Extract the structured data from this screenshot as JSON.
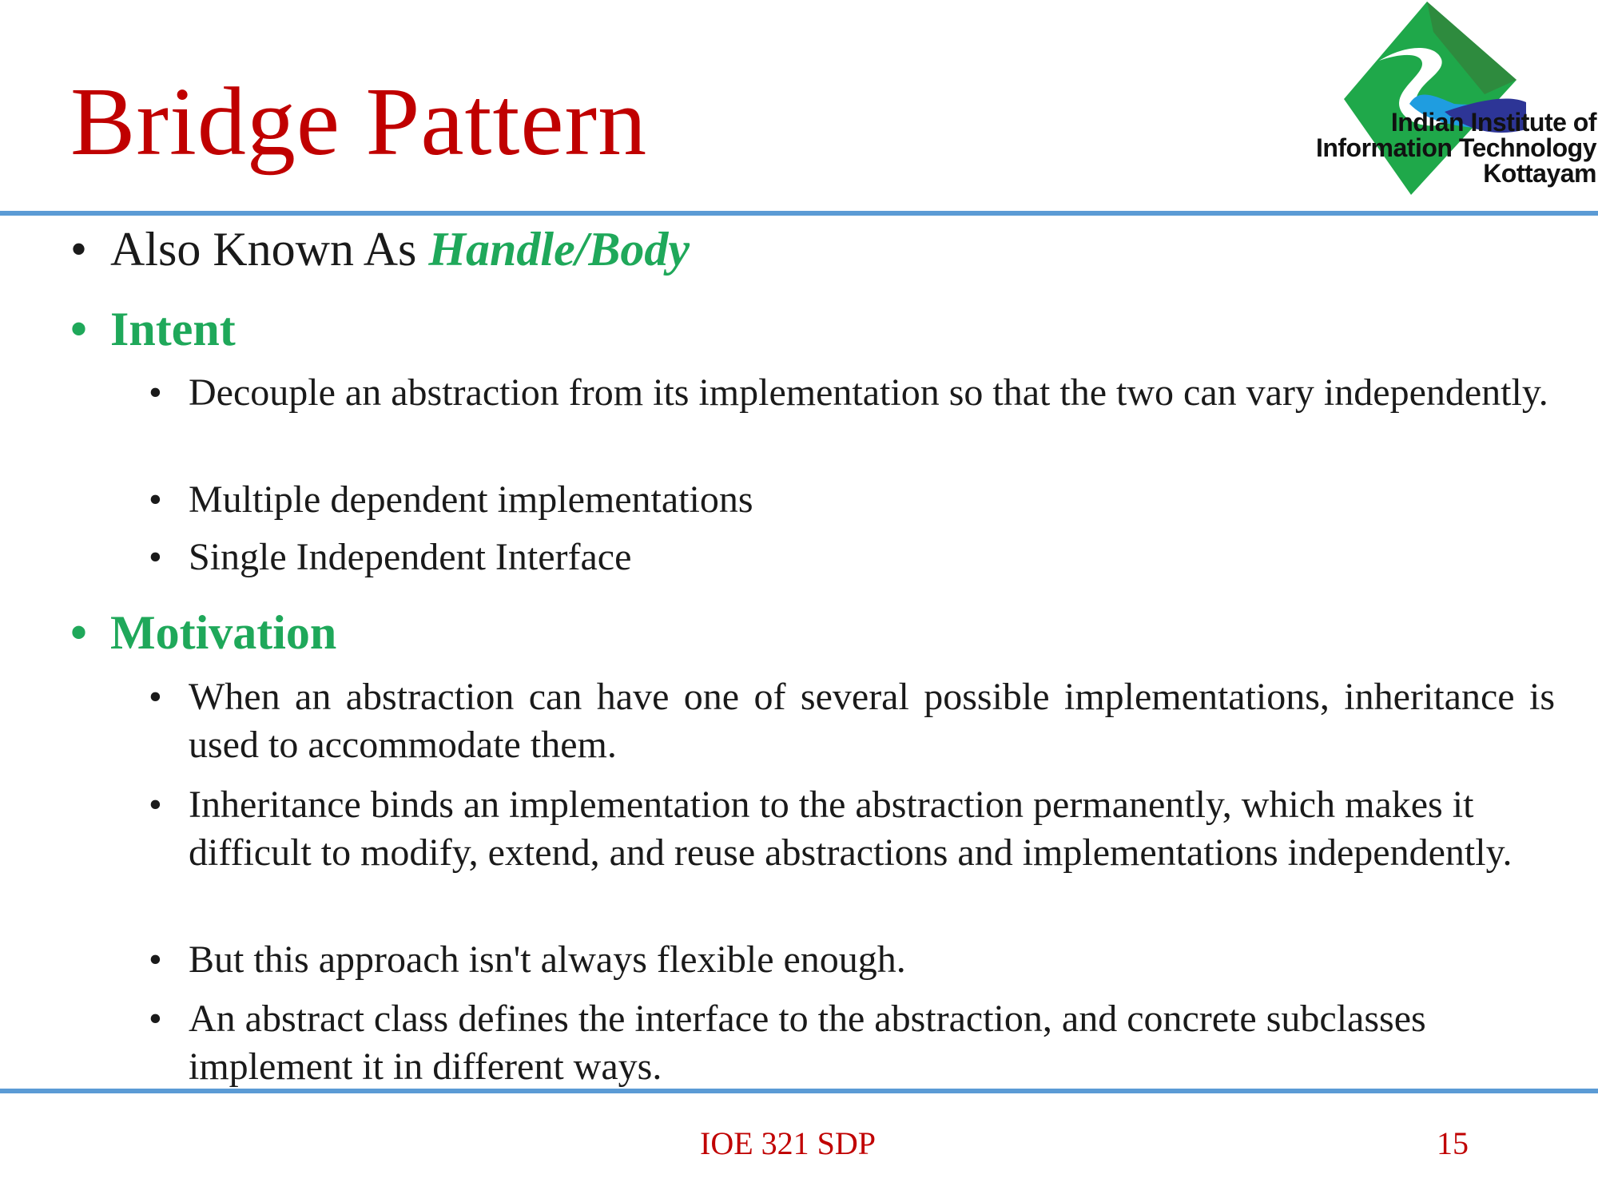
{
  "slide": {
    "title": "Bridge Pattern",
    "logo": {
      "line1": "Indian Institute of",
      "line2": "Information Technology",
      "line3": "Kottayam"
    },
    "aka": {
      "label": "Also Known As ",
      "value": "Handle/Body"
    },
    "intent": {
      "heading": "Intent",
      "items": [
        "Decouple an abstraction from its implementation so that the two can vary independently.",
        "Multiple dependent implementations",
        "Single Independent Interface"
      ]
    },
    "motivation": {
      "heading": "Motivation",
      "items": [
        "When an abstraction can have one of several possible implementations, inheritance is used to accommodate them.",
        "Inheritance binds an implementation to the abstraction permanently, which makes it difficult to modify, extend, and reuse abstractions and implementations independently.",
        "But this approach isn't always flexible enough.",
        "An abstract class defines the interface to the abstraction, and concrete subclasses implement it in different ways."
      ]
    },
    "footer": {
      "course": "IOE 321 SDP",
      "page": "15"
    },
    "colors": {
      "title": "#c00000",
      "accent": "#1fa85a",
      "rule": "#5b9bd5"
    }
  }
}
